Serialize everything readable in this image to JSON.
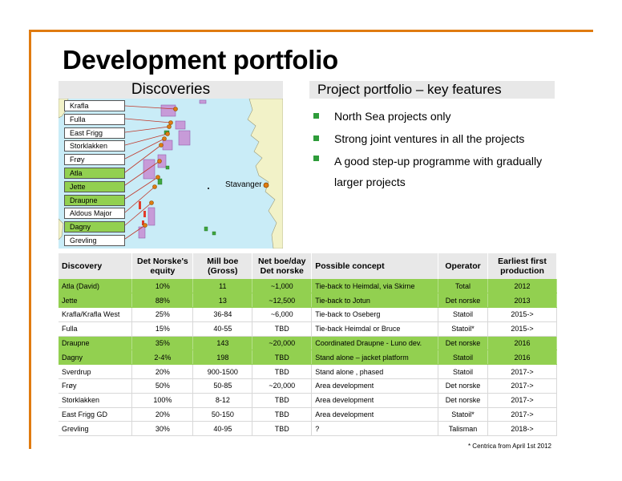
{
  "page": {
    "title": "Development portfolio",
    "footnote": "* Centrica from April 1st 2012"
  },
  "discoveries": {
    "header": "Discoveries",
    "fields": [
      {
        "name": "Krafla",
        "highlight": false
      },
      {
        "name": "Fulla",
        "highlight": false
      },
      {
        "name": "East Frigg",
        "highlight": false
      },
      {
        "name": "Storklakken",
        "highlight": false
      },
      {
        "name": "Frøy",
        "highlight": false
      },
      {
        "name": "Atla",
        "highlight": true
      },
      {
        "name": "Jette",
        "highlight": true
      },
      {
        "name": "Draupne",
        "highlight": true
      },
      {
        "name": "Aldous Major",
        "highlight": false
      },
      {
        "name": "Dagny",
        "highlight": true
      },
      {
        "name": "Grevling",
        "highlight": false
      }
    ],
    "city_label": "Stavanger"
  },
  "project": {
    "header": "Project portfolio – key features",
    "bullets": [
      "North Sea projects only",
      "Strong joint ventures in all the projects",
      "A good step-up programme with gradually larger projects"
    ]
  },
  "table": {
    "headers": {
      "discovery": "Discovery",
      "equity": "Det Norske's equity",
      "mill_boe": "Mill boe (Gross)",
      "net_boe": "Net boe/day Det norske",
      "concept": "Possible concept",
      "operator": "Operator",
      "production": "Earliest first production"
    },
    "rows": [
      {
        "discovery": "Atla (David)",
        "equity": "10%",
        "mill_boe": "11",
        "net_boe": "~1,000",
        "concept": "Tie-back to Heimdal, via Skirne",
        "operator": "Total",
        "production": "2012",
        "highlight": true
      },
      {
        "discovery": "Jette",
        "equity": "88%",
        "mill_boe": "13",
        "net_boe": "~12,500",
        "concept": "Tie-back to Jotun",
        "operator": "Det norske",
        "production": "2013",
        "highlight": true
      },
      {
        "discovery": "Krafla/Krafla West",
        "equity": "25%",
        "mill_boe": "36-84",
        "net_boe": "~6,000",
        "concept": "Tie-back to Oseberg",
        "operator": "Statoil",
        "production": "2015->",
        "highlight": false
      },
      {
        "discovery": "Fulla",
        "equity": "15%",
        "mill_boe": "40-55",
        "net_boe": "TBD",
        "concept": "Tie-back  Heimdal or Bruce",
        "operator": "Statoil*",
        "production": "2015->",
        "highlight": false
      },
      {
        "discovery": "Draupne",
        "equity": "35%",
        "mill_boe": "143",
        "net_boe": "~20,000",
        "concept": "Coordinated Draupne -  Luno dev.",
        "operator": "Det norske",
        "production": "2016",
        "highlight": true
      },
      {
        "discovery": "Dagny",
        "equity": "2-4%",
        "mill_boe": "198",
        "net_boe": "TBD",
        "concept": "Stand alone – jacket platform",
        "operator": "Statoil",
        "production": "2016",
        "highlight": true
      },
      {
        "discovery": "Sverdrup",
        "equity": "20%",
        "mill_boe": "900-1500",
        "net_boe": "TBD",
        "concept": "Stand alone , phased",
        "operator": "Statoil",
        "production": "2017->",
        "highlight": false
      },
      {
        "discovery": "Frøy",
        "equity": "50%",
        "mill_boe": "50-85",
        "net_boe": "~20,000",
        "concept": "Area development",
        "operator": "Det norske",
        "production": "2017->",
        "highlight": false
      },
      {
        "discovery": "Storklakken",
        "equity": "100%",
        "mill_boe": "8-12",
        "net_boe": "TBD",
        "concept": "Area development",
        "operator": "Det norske",
        "production": "2017->",
        "highlight": false
      },
      {
        "discovery": "East Frigg GD",
        "equity": "20%",
        "mill_boe": "50-150",
        "net_boe": "TBD",
        "concept": "Area development",
        "operator": "Statoil*",
        "production": "2017->",
        "highlight": false
      },
      {
        "discovery": "Grevling",
        "equity": "30%",
        "mill_boe": "40-95",
        "net_boe": "TBD",
        "concept": "?",
        "operator": "Talisman",
        "production": "2018->",
        "highlight": false
      }
    ]
  },
  "colors": {
    "accent_orange": "#e07b10",
    "highlight_green": "#92d050",
    "bullet_green": "#2e9c3a",
    "sea": "#c9ecf7",
    "land": "#f2f2c8"
  }
}
